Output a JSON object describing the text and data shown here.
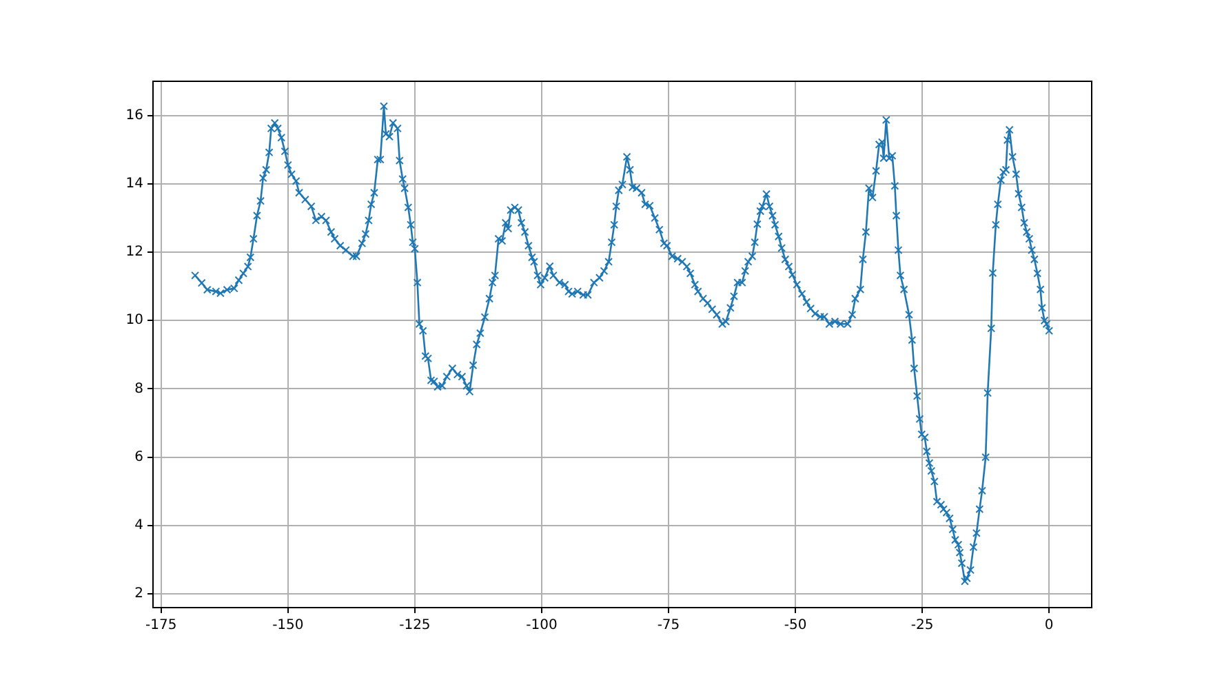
{
  "chart_data": {
    "type": "line",
    "xlim": [
      -176.6,
      8.4
    ],
    "ylim": [
      1.6,
      17.0
    ],
    "xticks": [
      -175,
      -150,
      -125,
      -100,
      -75,
      -50,
      -25,
      0
    ],
    "yticks": [
      2,
      4,
      6,
      8,
      10,
      12,
      14,
      16
    ],
    "grid": true,
    "legend": false,
    "marker": "cross",
    "line_style": "solid",
    "series": [
      {
        "color": "#1f77b4",
        "x": [
          -168.3,
          -167.0,
          -165.9,
          -164.2,
          -163.3,
          -162.0,
          -160.6,
          -159.7,
          -158.8,
          -157.9,
          -157.4,
          -156.8,
          -156.1,
          -155.4,
          -154.9,
          -154.3,
          -153.7,
          -153.3,
          -152.6,
          -152.0,
          -151.3,
          -150.6,
          -150.0,
          -149.3,
          -148.4,
          -147.8,
          -146.6,
          -145.4,
          -144.5,
          -143.4,
          -142.5,
          -141.5,
          -140.8,
          -139.7,
          -138.6,
          -137.2,
          -136.5,
          -135.4,
          -134.7,
          -134.1,
          -133.6,
          -133.0,
          -132.3,
          -131.8,
          -131.1,
          -130.7,
          -130.0,
          -129.3,
          -128.4,
          -128.0,
          -127.4,
          -127.0,
          -126.3,
          -125.8,
          -125.4,
          -125.0,
          -124.5,
          -124.1,
          -123.4,
          -122.9,
          -122.4,
          -121.8,
          -121.2,
          -120.5,
          -119.6,
          -118.7,
          -117.6,
          -116.6,
          -115.7,
          -114.8,
          -114.2,
          -113.5,
          -112.8,
          -112.1,
          -111.2,
          -110.3,
          -109.7,
          -109.2,
          -108.5,
          -107.8,
          -107.1,
          -106.6,
          -106.1,
          -105.3,
          -104.6,
          -104.0,
          -103.3,
          -102.6,
          -101.9,
          -101.5,
          -100.8,
          -100.2,
          -99.4,
          -98.4,
          -97.7,
          -96.5,
          -95.4,
          -94.7,
          -94.0,
          -92.9,
          -91.8,
          -90.9,
          -89.7,
          -88.6,
          -87.7,
          -86.8,
          -86.2,
          -85.7,
          -85.3,
          -84.8,
          -84.1,
          -83.2,
          -82.6,
          -82.1,
          -81.3,
          -80.3,
          -79.6,
          -78.7,
          -77.7,
          -76.8,
          -75.9,
          -75.3,
          -74.3,
          -73.2,
          -72.3,
          -71.4,
          -70.7,
          -69.8,
          -69.2,
          -68.2,
          -67.3,
          -66.4,
          -65.5,
          -64.4,
          -63.7,
          -62.8,
          -62.1,
          -61.4,
          -60.5,
          -59.9,
          -59.3,
          -58.5,
          -58.0,
          -57.5,
          -56.9,
          -56.5,
          -55.7,
          -55.1,
          -54.5,
          -54.0,
          -53.3,
          -52.7,
          -52.0,
          -51.3,
          -50.6,
          -49.7,
          -48.7,
          -47.8,
          -47.0,
          -46.1,
          -45.1,
          -44.3,
          -43.3,
          -42.2,
          -41.1,
          -39.7,
          -38.8,
          -38.2,
          -37.2,
          -36.7,
          -36.1,
          -35.5,
          -34.8,
          -34.1,
          -33.5,
          -32.9,
          -32.6,
          -32.1,
          -31.5,
          -30.9,
          -30.4,
          -30.1,
          -29.7,
          -29.3,
          -28.6,
          -27.6,
          -27.0,
          -26.6,
          -26.0,
          -25.5,
          -25.1,
          -24.5,
          -24.1,
          -23.6,
          -23.2,
          -22.6,
          -22.1,
          -21.3,
          -20.8,
          -20.2,
          -19.6,
          -19.0,
          -18.5,
          -17.9,
          -17.6,
          -17.2,
          -16.6,
          -16.2,
          -15.5,
          -14.9,
          -14.3,
          -13.7,
          -13.2,
          -12.5,
          -12.1,
          -11.4,
          -11.1,
          -10.5,
          -10.1,
          -9.5,
          -9.0,
          -8.5,
          -8.2,
          -7.8,
          -7.2,
          -6.5,
          -6.0,
          -5.4,
          -4.9,
          -4.4,
          -3.9,
          -3.4,
          -2.9,
          -2.3,
          -1.7,
          -1.4,
          -0.9,
          -0.5,
          0.0
        ],
        "values": [
          11.32,
          11.1,
          10.9,
          10.85,
          10.8,
          10.9,
          10.94,
          11.18,
          11.38,
          11.58,
          11.85,
          12.39,
          13.07,
          13.5,
          14.17,
          14.41,
          14.92,
          15.62,
          15.78,
          15.62,
          15.35,
          14.95,
          14.55,
          14.28,
          14.08,
          13.74,
          13.54,
          13.34,
          12.93,
          13.04,
          12.93,
          12.59,
          12.39,
          12.19,
          12.06,
          11.88,
          11.88,
          12.26,
          12.53,
          12.93,
          13.4,
          13.74,
          14.71,
          14.71,
          16.27,
          15.46,
          15.38,
          15.78,
          15.62,
          14.68,
          14.14,
          13.87,
          13.31,
          12.8,
          12.29,
          12.1,
          11.11,
          9.9,
          9.7,
          8.96,
          8.89,
          8.25,
          8.22,
          8.06,
          8.09,
          8.36,
          8.6,
          8.42,
          8.36,
          8.09,
          7.92,
          8.69,
          9.3,
          9.63,
          10.1,
          10.64,
          11.11,
          11.32,
          12.39,
          12.33,
          12.86,
          12.69,
          13.23,
          13.31,
          13.23,
          12.86,
          12.59,
          12.19,
          11.85,
          11.72,
          11.32,
          11.05,
          11.25,
          11.59,
          11.32,
          11.11,
          11.05,
          10.85,
          10.78,
          10.85,
          10.75,
          10.75,
          11.11,
          11.25,
          11.45,
          11.72,
          12.29,
          12.8,
          13.34,
          13.81,
          13.98,
          14.79,
          14.41,
          13.9,
          13.87,
          13.74,
          13.4,
          13.36,
          13.0,
          12.66,
          12.26,
          12.19,
          11.88,
          11.81,
          11.72,
          11.58,
          11.38,
          11.05,
          10.85,
          10.64,
          10.51,
          10.33,
          10.17,
          9.9,
          9.97,
          10.37,
          10.71,
          11.11,
          11.11,
          11.45,
          11.72,
          11.88,
          12.29,
          12.82,
          13.2,
          13.34,
          13.7,
          13.34,
          13.07,
          12.8,
          12.46,
          12.12,
          11.79,
          11.58,
          11.34,
          11.05,
          10.78,
          10.54,
          10.35,
          10.2,
          10.11,
          10.11,
          9.9,
          9.97,
          9.9,
          9.9,
          10.17,
          10.64,
          10.91,
          11.79,
          12.59,
          13.87,
          13.6,
          14.38,
          15.15,
          15.22,
          14.75,
          15.87,
          14.75,
          14.82,
          13.94,
          13.07,
          12.06,
          11.32,
          10.91,
          10.17,
          9.43,
          8.6,
          7.79,
          7.12,
          6.67,
          6.58,
          6.17,
          5.83,
          5.6,
          5.29,
          4.7,
          4.61,
          4.48,
          4.38,
          4.21,
          3.89,
          3.58,
          3.44,
          3.21,
          2.9,
          2.37,
          2.46,
          2.7,
          3.37,
          3.78,
          4.48,
          5.02,
          6.0,
          7.88,
          9.77,
          11.39,
          12.8,
          13.4,
          14.11,
          14.34,
          14.41,
          15.28,
          15.58,
          14.79,
          14.28,
          13.71,
          13.31,
          12.86,
          12.59,
          12.39,
          12.06,
          11.79,
          11.38,
          10.91,
          10.37,
          10.0,
          9.9,
          9.7
        ]
      }
    ]
  }
}
